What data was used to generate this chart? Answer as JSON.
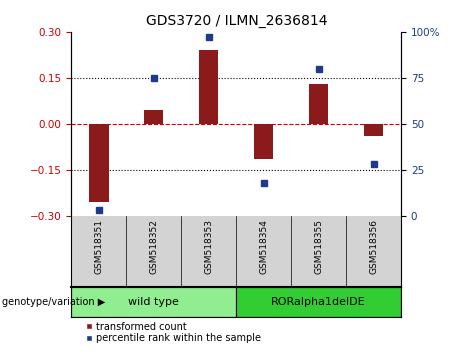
{
  "title": "GDS3720 / ILMN_2636814",
  "samples": [
    "GSM518351",
    "GSM518352",
    "GSM518353",
    "GSM518354",
    "GSM518355",
    "GSM518356"
  ],
  "bar_values": [
    -0.255,
    0.045,
    0.24,
    -0.115,
    0.13,
    -0.04
  ],
  "percentile_values": [
    3,
    75,
    97,
    18,
    80,
    28
  ],
  "ylim_left": [
    -0.3,
    0.3
  ],
  "ylim_right": [
    0,
    100
  ],
  "yticks_left": [
    -0.3,
    -0.15,
    0,
    0.15,
    0.3
  ],
  "yticks_right": [
    0,
    25,
    50,
    75,
    100
  ],
  "bar_color": "#8B1A1A",
  "point_color": "#1E3A8A",
  "hline_color": "#CC0000",
  "group1_label": "wild type",
  "group2_label": "RORalpha1delDE",
  "group1_color": "#90EE90",
  "group2_color": "#32CD32",
  "group1_indices": [
    0,
    1,
    2
  ],
  "group2_indices": [
    3,
    4,
    5
  ],
  "legend_bar_label": "transformed count",
  "legend_point_label": "percentile rank within the sample",
  "xlabel_group": "genotype/variation"
}
